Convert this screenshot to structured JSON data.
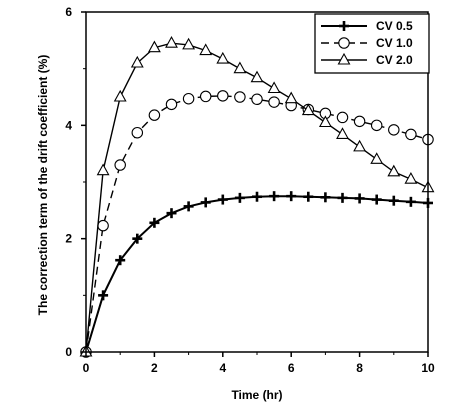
{
  "chart_data": {
    "type": "line",
    "title": "",
    "xlabel": "Time (hr)",
    "ylabel": "The correction term of the drift coefficient (%)",
    "xlim": [
      0,
      10
    ],
    "ylim": [
      0,
      6
    ],
    "xticks": [
      "0",
      "2",
      "4",
      "6",
      "8",
      "10"
    ],
    "yticks": [
      "0",
      "2",
      "4",
      "6"
    ],
    "grid": false,
    "legend_position": "top-right",
    "series": [
      {
        "name": "CV 0.5",
        "marker": "plus",
        "line": "solid",
        "x": [
          0,
          0.5,
          1,
          1.5,
          2,
          2.5,
          3,
          3.5,
          4,
          4.5,
          5,
          5.5,
          6,
          6.5,
          7,
          7.5,
          8,
          8.5,
          9,
          9.5,
          10
        ],
        "y": [
          0,
          1.0,
          1.62,
          2.0,
          2.28,
          2.45,
          2.57,
          2.64,
          2.69,
          2.72,
          2.74,
          2.75,
          2.75,
          2.74,
          2.73,
          2.72,
          2.71,
          2.69,
          2.67,
          2.65,
          2.63
        ]
      },
      {
        "name": "CV 1.0",
        "marker": "circle",
        "line": "dashed",
        "x": [
          0,
          0.5,
          1,
          1.5,
          2,
          2.5,
          3,
          3.5,
          4,
          4.5,
          5,
          5.5,
          6,
          6.5,
          7,
          7.5,
          8,
          8.5,
          9,
          9.5,
          10
        ],
        "y": [
          0,
          2.23,
          3.3,
          3.87,
          4.18,
          4.37,
          4.47,
          4.51,
          4.52,
          4.5,
          4.46,
          4.41,
          4.35,
          4.28,
          4.21,
          4.14,
          4.07,
          4.0,
          3.92,
          3.84,
          3.75
        ]
      },
      {
        "name": "CV 2.0",
        "marker": "triangle",
        "line": "solid",
        "x": [
          0,
          0.5,
          1,
          1.5,
          2,
          2.5,
          3,
          3.5,
          4,
          4.5,
          5,
          5.5,
          6,
          6.5,
          7,
          7.5,
          8,
          8.5,
          9,
          9.5,
          10
        ],
        "y": [
          0,
          3.2,
          4.5,
          5.1,
          5.37,
          5.45,
          5.42,
          5.32,
          5.17,
          5.0,
          4.84,
          4.65,
          4.47,
          4.26,
          4.05,
          3.84,
          3.62,
          3.4,
          3.18,
          3.05,
          2.9
        ]
      }
    ]
  }
}
